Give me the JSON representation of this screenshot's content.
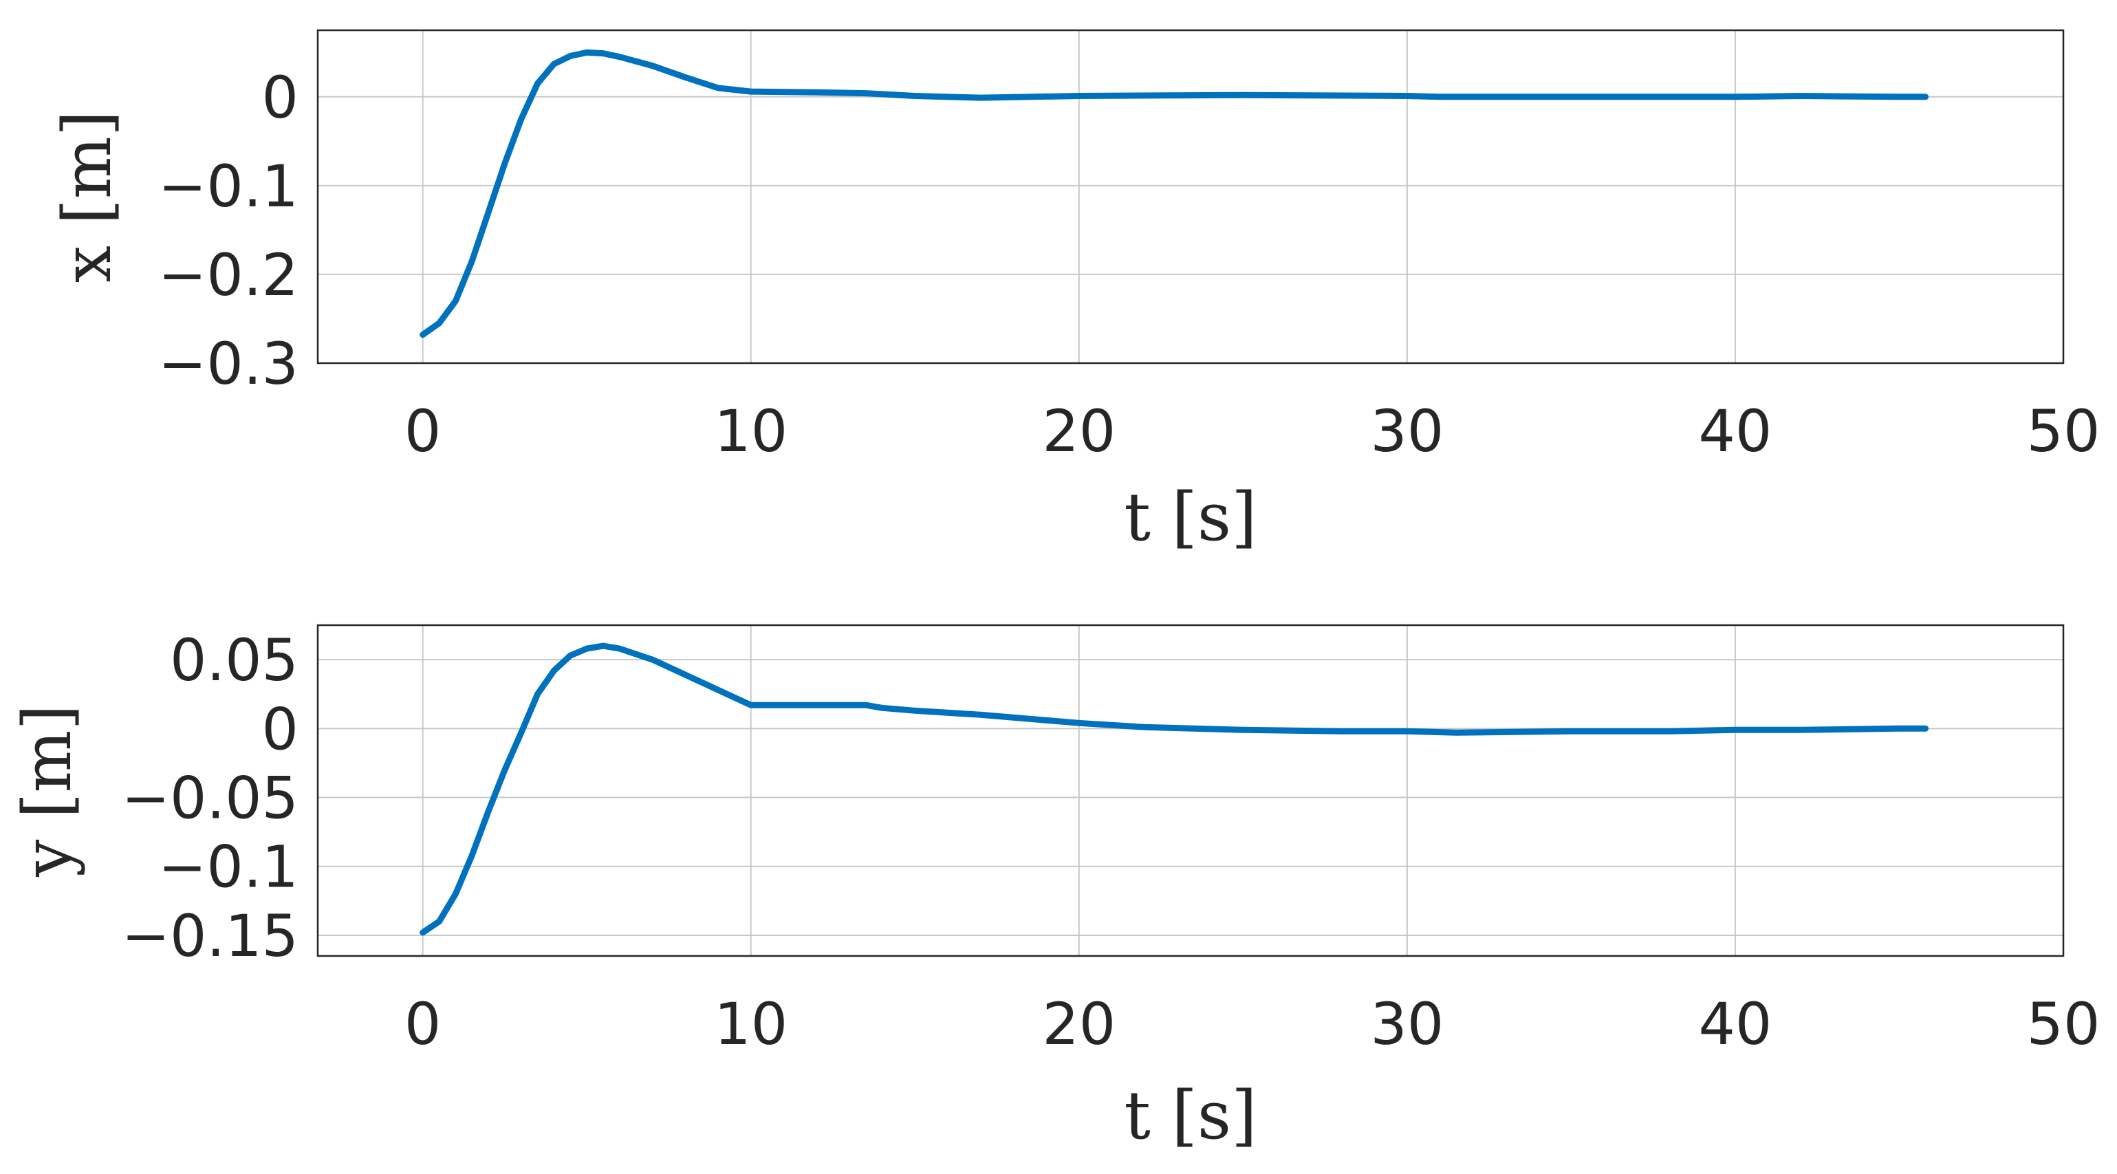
{
  "chart_data": [
    {
      "type": "line",
      "xlabel": "t [s]",
      "ylabel": "x [m]",
      "xlim": [
        -3.2,
        50
      ],
      "ylim": [
        -0.3,
        0.075
      ],
      "xticks": [
        0,
        10,
        20,
        30,
        40,
        50
      ],
      "xtick_labels": [
        "0",
        "10",
        "20",
        "30",
        "40",
        "50"
      ],
      "yticks": [
        -0.3,
        -0.2,
        -0.1,
        0
      ],
      "ytick_labels": [
        "−0.3",
        "−0.2",
        "−0.1",
        "0"
      ],
      "grid": true,
      "series": [
        {
          "color": "#0072BD",
          "x": [
            0,
            0.5,
            1,
            1.5,
            2,
            2.5,
            3,
            3.5,
            4,
            4.5,
            5,
            5.5,
            6,
            7,
            8,
            9,
            10,
            12,
            13.5,
            14,
            15,
            17,
            20,
            25,
            30,
            31,
            35,
            38,
            40,
            42,
            45,
            45.8
          ],
          "y": [
            -0.268,
            -0.255,
            -0.23,
            -0.185,
            -0.13,
            -0.075,
            -0.025,
            0.015,
            0.037,
            0.046,
            0.05,
            0.049,
            0.045,
            0.035,
            0.022,
            0.01,
            0.006,
            0.005,
            0.004,
            0.003,
            0.001,
            -0.001,
            0.001,
            0.002,
            0.001,
            0.0,
            0.0,
            0.0,
            0.0,
            0.001,
            0.0,
            0.0
          ]
        }
      ]
    },
    {
      "type": "line",
      "xlabel": "t [s]",
      "ylabel": "y [m]",
      "xlim": [
        -3.2,
        50
      ],
      "ylim": [
        -0.165,
        0.075
      ],
      "xticks": [
        0,
        10,
        20,
        30,
        40,
        50
      ],
      "xtick_labels": [
        "0",
        "10",
        "20",
        "30",
        "40",
        "50"
      ],
      "yticks": [
        -0.15,
        -0.1,
        -0.05,
        0,
        0.05
      ],
      "ytick_labels": [
        "−0.15",
        "−0.1",
        "−0.05",
        "0",
        "0.05"
      ],
      "grid": true,
      "series": [
        {
          "color": "#0072BD",
          "x": [
            0,
            0.5,
            1,
            1.5,
            2,
            2.5,
            3,
            3.5,
            4,
            4.5,
            5,
            5.5,
            6,
            7,
            8,
            9,
            10,
            12,
            13.5,
            14,
            15,
            17,
            20,
            22,
            25,
            28,
            30,
            31.5,
            35,
            38,
            40,
            42,
            45,
            45.8
          ],
          "y": [
            -0.148,
            -0.14,
            -0.12,
            -0.092,
            -0.06,
            -0.03,
            -0.003,
            0.025,
            0.042,
            0.053,
            0.058,
            0.06,
            0.058,
            0.05,
            0.039,
            0.028,
            0.017,
            0.017,
            0.017,
            0.015,
            0.013,
            0.01,
            0.004,
            0.001,
            -0.001,
            -0.002,
            -0.002,
            -0.003,
            -0.002,
            -0.002,
            -0.001,
            -0.001,
            0.0,
            0.0
          ]
        }
      ]
    }
  ]
}
